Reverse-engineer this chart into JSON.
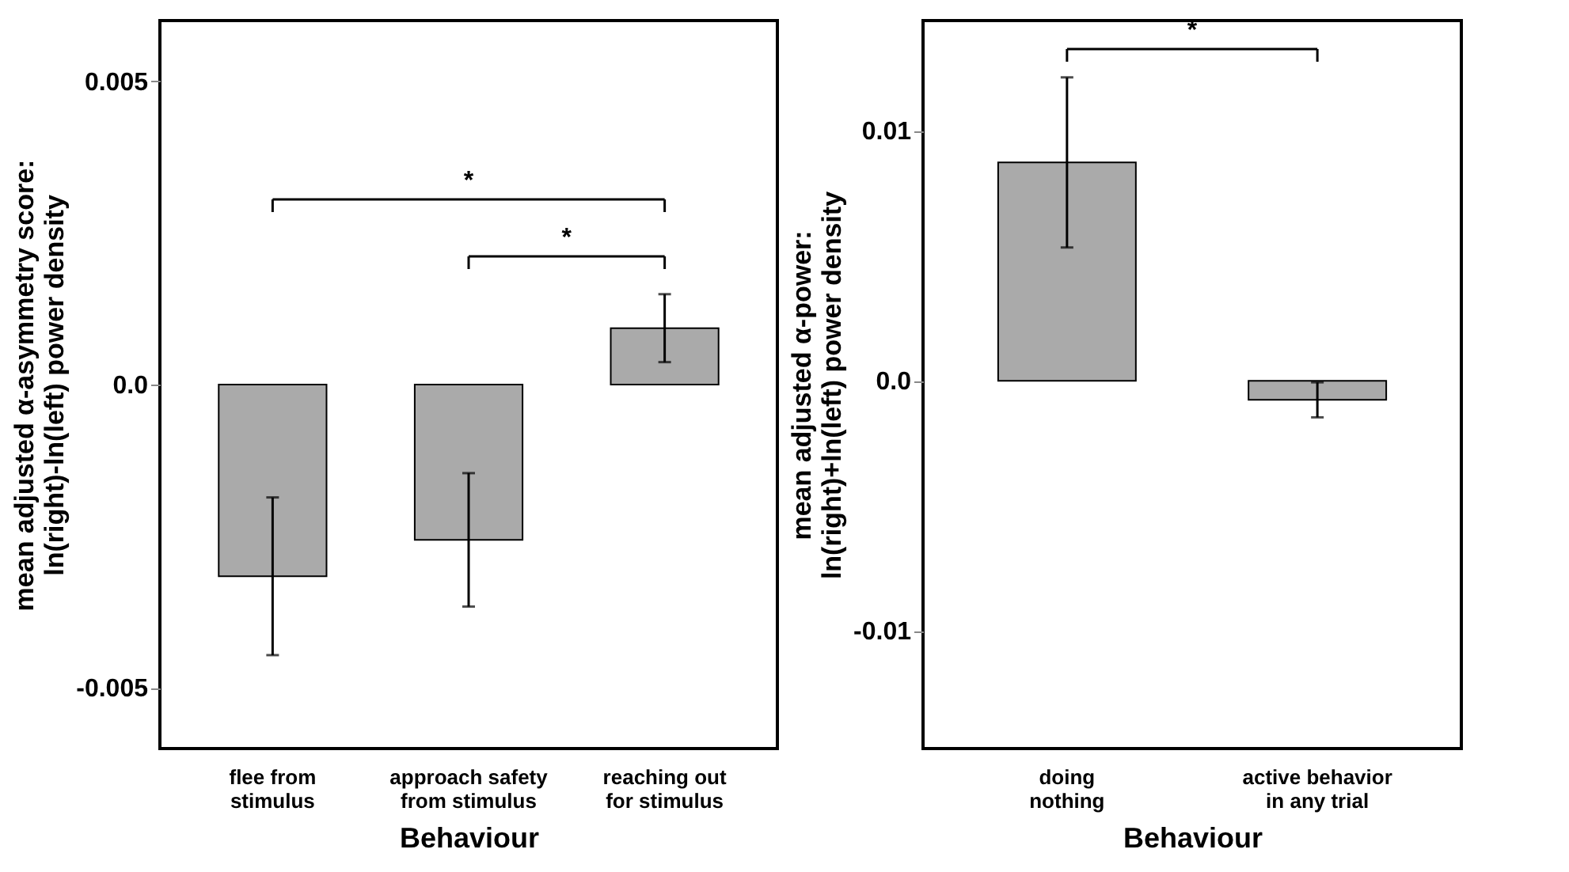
{
  "chart_data": [
    {
      "type": "bar",
      "xlabel": "Behaviour",
      "ylabel": "mean adjusted α-asymmetry score:\nln(right)-ln(left) power density",
      "categories": [
        "flee from\nstimulus",
        "approach safety\nfrom stimulus",
        "reaching out\nfor stimulus"
      ],
      "values": [
        -0.00316,
        -0.00256,
        0.00093
      ],
      "errors": [
        0.0013,
        0.0011,
        0.00056
      ],
      "color": "#aaaaaa",
      "ylim": [
        -0.006,
        0.006
      ],
      "yticks": [
        0.005,
        {
          "value": 0,
          "label": "0.0"
        },
        -0.005
      ],
      "grid": false,
      "annotations": [
        "*",
        "*"
      ]
    },
    {
      "type": "bar",
      "xlabel": "Behaviour",
      "ylabel": "mean adjusted α-power:\nln(right)+ln(left) power density",
      "categories": [
        "doing\nnothing",
        "active behavior\nin any trial"
      ],
      "values": [
        0.00873,
        -0.00076
      ],
      "errors": [
        0.0034,
        0.0007
      ],
      "color": "#aaaaaa",
      "ylim": [
        -0.0147,
        0.0144
      ],
      "yticks": [
        0.01,
        {
          "value": 0,
          "label": "0.0"
        },
        -0.01
      ],
      "grid": false,
      "annotations": [
        "*"
      ]
    }
  ]
}
